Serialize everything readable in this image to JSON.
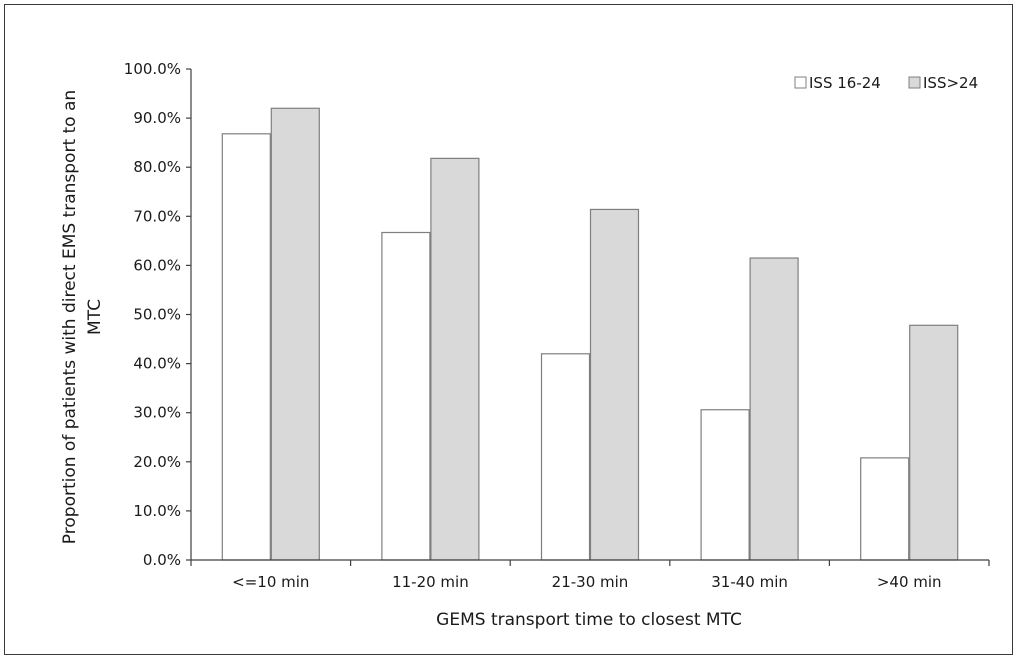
{
  "chart_data": {
    "type": "bar",
    "categories": [
      "<=10 min",
      "11-20 min",
      "21-30 min",
      "31-40 min",
      ">40 min"
    ],
    "series": [
      {
        "name": "ISS 16-24",
        "values": [
          86.8,
          66.7,
          42.0,
          30.6,
          20.8
        ],
        "color": "#ffffff"
      },
      {
        "name": "ISS>24",
        "values": [
          92.0,
          81.8,
          71.4,
          61.5,
          47.8
        ],
        "color": "#d9d9d9"
      }
    ],
    "xlabel": "GEMS transport time to closest MTC",
    "ylabel_lines": [
      "Proportion of patients with direct EMS transport to an",
      "MTC"
    ],
    "ylim": [
      0,
      100
    ],
    "yticks": [
      "0.0%",
      "10.0%",
      "20.0%",
      "30.0%",
      "40.0%",
      "50.0%",
      "60.0%",
      "70.0%",
      "80.0%",
      "90.0%",
      "100.0%"
    ],
    "legend_position": "top-right",
    "grid": false,
    "bar_outline_color": "#7f7f7f",
    "axis_color": "#404040"
  }
}
